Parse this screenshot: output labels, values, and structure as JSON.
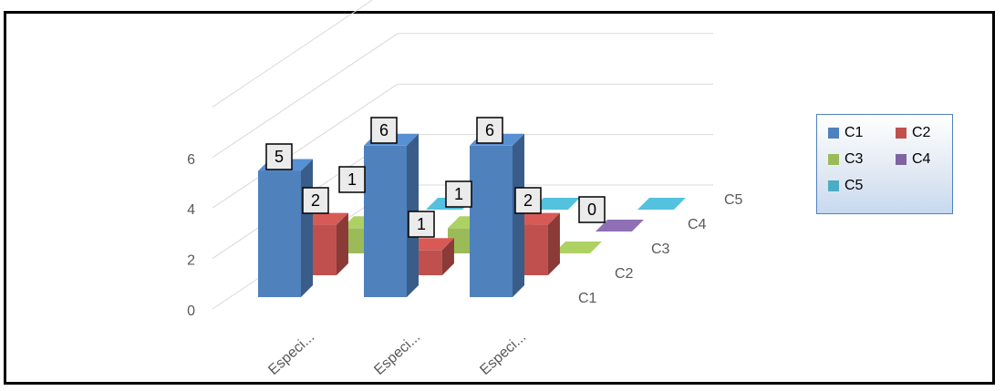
{
  "chart_data": {
    "type": "bar",
    "subtype": "3d-column",
    "title": "",
    "categories": [
      "Especi...",
      "Especi...",
      "Especi..."
    ],
    "depth_labels": [
      "C1",
      "C2",
      "C3",
      "C4",
      "C5"
    ],
    "yticks": [
      "0",
      "2",
      "4",
      "6"
    ],
    "ylim": [
      0,
      8
    ],
    "grid": true,
    "legend_position": "right",
    "series": [
      {
        "name": "C1",
        "color": "#4f81bd",
        "values": [
          5,
          6,
          6
        ],
        "labels": [
          "5",
          "6",
          "6"
        ]
      },
      {
        "name": "C2",
        "color": "#c0504d",
        "values": [
          2,
          1,
          2
        ],
        "labels": [
          "2",
          "1",
          "2"
        ]
      },
      {
        "name": "C3",
        "color": "#9bbb59",
        "values": [
          1,
          1,
          0
        ],
        "labels": [
          "1",
          "1",
          "0"
        ]
      },
      {
        "name": "C4",
        "color": "#8064a2",
        "values": [
          0,
          0,
          0
        ],
        "labels": [
          "",
          "",
          ""
        ]
      },
      {
        "name": "C5",
        "color": "#4bacc6",
        "values": [
          0,
          0,
          0
        ],
        "labels": [
          "",
          "",
          ""
        ]
      }
    ]
  }
}
